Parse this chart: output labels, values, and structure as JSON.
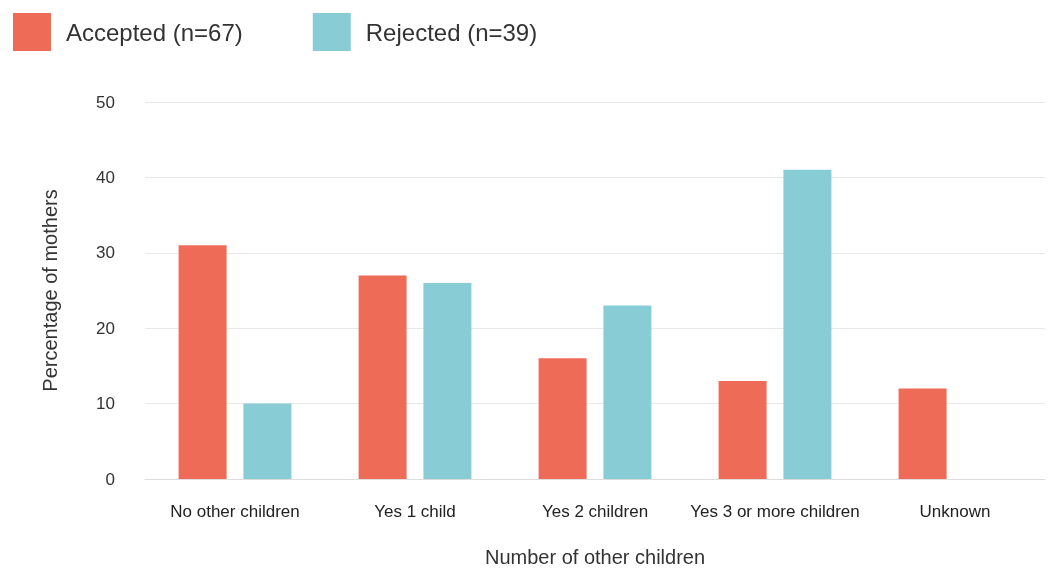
{
  "chart_data": {
    "type": "bar",
    "xlabel": "Number of other children",
    "ylabel": "Percentage of mothers",
    "categories": [
      "No other children",
      "Yes 1 child",
      "Yes 2 children",
      "Yes 3 or more children",
      "Unknown"
    ],
    "series": [
      {
        "name": "Accepted (n=67)",
        "color": "#ee6b58",
        "values": [
          31,
          27,
          16,
          13,
          12
        ]
      },
      {
        "name": "Rejected (n=39)",
        "color": "#88cdd6",
        "values": [
          10,
          26,
          23,
          41,
          0
        ]
      }
    ],
    "ylim": [
      0,
      50
    ],
    "yticks": [
      0,
      10,
      20,
      30,
      40,
      50
    ],
    "grid": "y",
    "legend": "top left"
  }
}
